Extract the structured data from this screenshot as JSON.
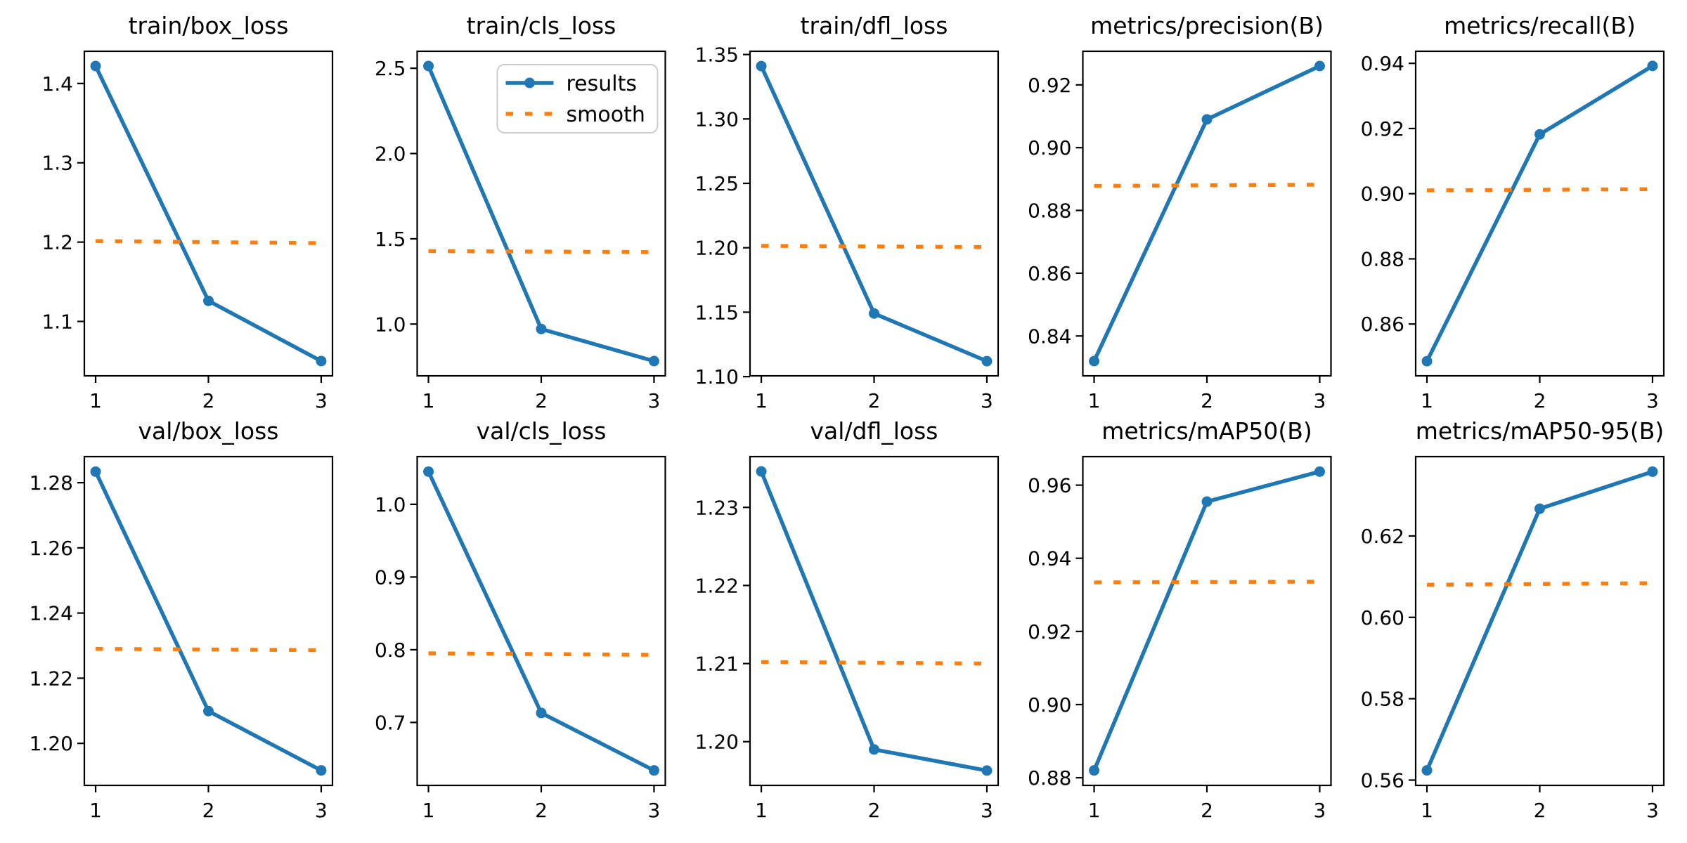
{
  "figure": {
    "background": "#ffffff",
    "text_color": "#000000",
    "axis_color": "#000000",
    "colors": {
      "results": "#1f77b4",
      "smooth": "#ff7f0e"
    },
    "x_tick_labels": [
      "1",
      "2",
      "3"
    ],
    "legend": {
      "labels": [
        "results",
        "smooth"
      ],
      "subplot_index": 1,
      "position": "upper-right"
    }
  },
  "chart_data": [
    {
      "type": "line",
      "title": "train/box_loss",
      "x": [
        1,
        2,
        3
      ],
      "xticks": [
        1,
        2,
        3
      ],
      "series": [
        {
          "name": "results",
          "values": [
            1.422,
            1.126,
            1.05
          ],
          "style": "solid-marker",
          "color": "#1f77b4"
        },
        {
          "name": "smooth",
          "values": [
            1.2013,
            1.2,
            1.1987
          ],
          "style": "dotted",
          "color": "#ff7f0e"
        }
      ],
      "yticks": [
        1.1,
        1.2,
        1.3,
        1.4
      ],
      "ytick_labels": [
        "1.1",
        "1.2",
        "1.3",
        "1.4"
      ],
      "ylim": [
        1.0314,
        1.4406
      ],
      "xlim": [
        0.9,
        3.1
      ],
      "grid": false,
      "legend": false
    },
    {
      "type": "line",
      "title": "train/cls_loss",
      "x": [
        1,
        2,
        3
      ],
      "xticks": [
        1,
        2,
        3
      ],
      "series": [
        {
          "name": "results",
          "values": [
            2.513,
            0.971,
            0.783
          ],
          "style": "solid-marker",
          "color": "#1f77b4"
        },
        {
          "name": "smooth",
          "values": [
            1.428,
            1.425,
            1.422
          ],
          "style": "dotted",
          "color": "#ff7f0e"
        }
      ],
      "yticks": [
        1.0,
        1.5,
        2.0,
        2.5
      ],
      "ytick_labels": [
        "1.0",
        "1.5",
        "2.0",
        "2.5"
      ],
      "ylim": [
        0.6965,
        2.5995
      ],
      "xlim": [
        0.9,
        3.1
      ],
      "grid": false,
      "legend": true
    },
    {
      "type": "line",
      "title": "train/dfl_loss",
      "x": [
        1,
        2,
        3
      ],
      "xticks": [
        1,
        2,
        3
      ],
      "series": [
        {
          "name": "results",
          "values": [
            1.341,
            1.149,
            1.112
          ],
          "style": "solid-marker",
          "color": "#1f77b4"
        },
        {
          "name": "smooth",
          "values": [
            1.2015,
            1.201,
            1.2005
          ],
          "style": "dotted",
          "color": "#ff7f0e"
        }
      ],
      "yticks": [
        1.1,
        1.15,
        1.2,
        1.25,
        1.3,
        1.35
      ],
      "ytick_labels": [
        "1.10",
        "1.15",
        "1.20",
        "1.25",
        "1.30",
        "1.35"
      ],
      "ylim": [
        1.1006,
        1.3525
      ],
      "xlim": [
        0.9,
        3.1
      ],
      "grid": false,
      "legend": false
    },
    {
      "type": "line",
      "title": "metrics/precision(B)",
      "x": [
        1,
        2,
        3
      ],
      "xticks": [
        1,
        2,
        3
      ],
      "series": [
        {
          "name": "results",
          "values": [
            0.832,
            0.909,
            0.926
          ],
          "style": "solid-marker",
          "color": "#1f77b4"
        },
        {
          "name": "smooth",
          "values": [
            0.8878,
            0.888,
            0.8882
          ],
          "style": "dotted",
          "color": "#ff7f0e"
        }
      ],
      "yticks": [
        0.84,
        0.86,
        0.88,
        0.9,
        0.92
      ],
      "ytick_labels": [
        "0.84",
        "0.86",
        "0.88",
        "0.90",
        "0.92"
      ],
      "ylim": [
        0.8273,
        0.9307
      ],
      "xlim": [
        0.9,
        3.1
      ],
      "grid": false,
      "legend": false
    },
    {
      "type": "line",
      "title": "metrics/recall(B)",
      "x": [
        1,
        2,
        3
      ],
      "xticks": [
        1,
        2,
        3
      ],
      "series": [
        {
          "name": "results",
          "values": [
            0.8486,
            0.9182,
            0.9392
          ],
          "style": "solid-marker",
          "color": "#1f77b4"
        },
        {
          "name": "smooth",
          "values": [
            0.901,
            0.9012,
            0.9014
          ],
          "style": "dotted",
          "color": "#ff7f0e"
        }
      ],
      "yticks": [
        0.86,
        0.88,
        0.9,
        0.92,
        0.94
      ],
      "ytick_labels": [
        "0.86",
        "0.88",
        "0.90",
        "0.92",
        "0.94"
      ],
      "ylim": [
        0.8441,
        0.9437
      ],
      "xlim": [
        0.9,
        3.1
      ],
      "grid": false,
      "legend": false
    },
    {
      "type": "line",
      "title": "val/box_loss",
      "x": [
        1,
        2,
        3
      ],
      "xticks": [
        1,
        2,
        3
      ],
      "series": [
        {
          "name": "results",
          "values": [
            1.2834,
            1.2099,
            1.1917
          ],
          "style": "solid-marker",
          "color": "#1f77b4"
        },
        {
          "name": "smooth",
          "values": [
            1.229,
            1.2288,
            1.2286
          ],
          "style": "dotted",
          "color": "#ff7f0e"
        }
      ],
      "yticks": [
        1.2,
        1.22,
        1.24,
        1.26,
        1.28
      ],
      "ytick_labels": [
        "1.20",
        "1.22",
        "1.24",
        "1.26",
        "1.28"
      ],
      "ylim": [
        1.1871,
        1.288
      ],
      "xlim": [
        0.9,
        3.1
      ],
      "grid": false,
      "legend": false
    },
    {
      "type": "line",
      "title": "val/cls_loss",
      "x": [
        1,
        2,
        3
      ],
      "xticks": [
        1,
        2,
        3
      ],
      "series": [
        {
          "name": "results",
          "values": [
            1.045,
            0.713,
            0.634
          ],
          "style": "solid-marker",
          "color": "#1f77b4"
        },
        {
          "name": "smooth",
          "values": [
            0.795,
            0.794,
            0.793
          ],
          "style": "dotted",
          "color": "#ff7f0e"
        }
      ],
      "yticks": [
        0.7,
        0.8,
        0.9,
        1.0
      ],
      "ytick_labels": [
        "0.7",
        "0.8",
        "0.9",
        "1.0"
      ],
      "ylim": [
        0.6134,
        1.0656
      ],
      "xlim": [
        0.9,
        3.1
      ],
      "grid": false,
      "legend": false
    },
    {
      "type": "line",
      "title": "val/dfl_loss",
      "x": [
        1,
        2,
        3
      ],
      "xticks": [
        1,
        2,
        3
      ],
      "series": [
        {
          "name": "results",
          "values": [
            1.2346,
            1.199,
            1.1963
          ],
          "style": "solid-marker",
          "color": "#1f77b4"
        },
        {
          "name": "smooth",
          "values": [
            1.2102,
            1.2101,
            1.21
          ],
          "style": "dotted",
          "color": "#ff7f0e"
        }
      ],
      "yticks": [
        1.2,
        1.21,
        1.22,
        1.23
      ],
      "ytick_labels": [
        "1.20",
        "1.21",
        "1.22",
        "1.23"
      ],
      "ylim": [
        1.1944,
        1.2365
      ],
      "xlim": [
        0.9,
        3.1
      ],
      "grid": false,
      "legend": false
    },
    {
      "type": "line",
      "title": "metrics/mAP50(B)",
      "x": [
        1,
        2,
        3
      ],
      "xticks": [
        1,
        2,
        3
      ],
      "series": [
        {
          "name": "results",
          "values": [
            0.882,
            0.9555,
            0.9637
          ],
          "style": "solid-marker",
          "color": "#1f77b4"
        },
        {
          "name": "smooth",
          "values": [
            0.9334,
            0.9335,
            0.9336
          ],
          "style": "dotted",
          "color": "#ff7f0e"
        }
      ],
      "yticks": [
        0.88,
        0.9,
        0.92,
        0.94,
        0.96
      ],
      "ytick_labels": [
        "0.88",
        "0.90",
        "0.92",
        "0.94",
        "0.96"
      ],
      "ylim": [
        0.8779,
        0.9678
      ],
      "xlim": [
        0.9,
        3.1
      ],
      "grid": false,
      "legend": false
    },
    {
      "type": "line",
      "title": "metrics/mAP50-95(B)",
      "x": [
        1,
        2,
        3
      ],
      "xticks": [
        1,
        2,
        3
      ],
      "series": [
        {
          "name": "results",
          "values": [
            0.5624,
            0.6267,
            0.6358
          ],
          "style": "solid-marker",
          "color": "#1f77b4"
        },
        {
          "name": "smooth",
          "values": [
            0.608,
            0.6082,
            0.6084
          ],
          "style": "dotted",
          "color": "#ff7f0e"
        }
      ],
      "yticks": [
        0.56,
        0.58,
        0.6,
        0.62
      ],
      "ytick_labels": [
        "0.56",
        "0.58",
        "0.60",
        "0.62"
      ],
      "ylim": [
        0.5587,
        0.6395
      ],
      "xlim": [
        0.9,
        3.1
      ],
      "grid": false,
      "legend": false
    }
  ]
}
